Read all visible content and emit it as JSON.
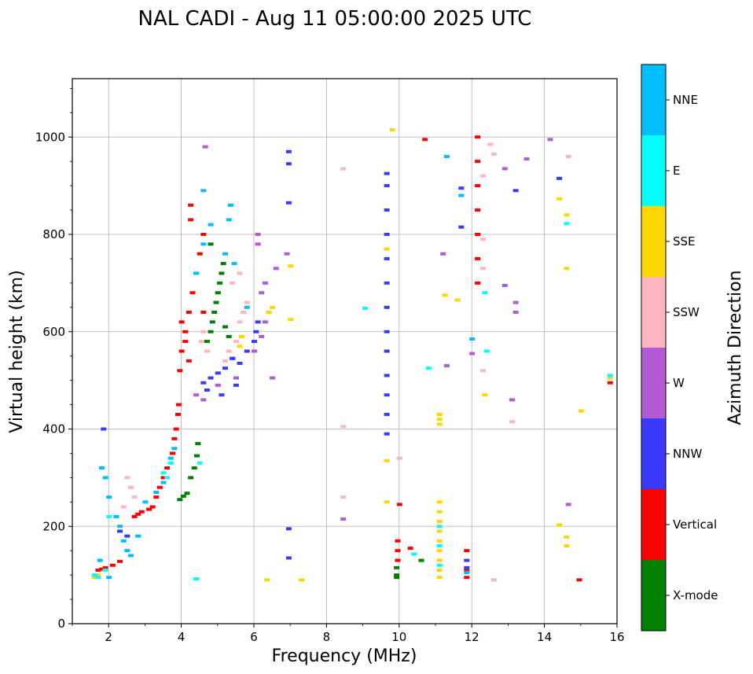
{
  "chart_data": {
    "type": "scatter",
    "title": "NAL CADI - Aug 11 05:00:00 2025 UTC",
    "xlabel": "Frequency (MHz)",
    "ylabel": "Virtual height (km)",
    "xlim": [
      1,
      16
    ],
    "ylim": [
      0,
      1120
    ],
    "xticks": [
      2,
      4,
      6,
      8,
      10,
      12,
      14,
      16
    ],
    "yticks": [
      0,
      200,
      400,
      600,
      800,
      1000
    ],
    "grid": true,
    "colorbar": {
      "label": "Azimuth Direction",
      "categories": [
        {
          "name": "X-mode",
          "color": "#008000"
        },
        {
          "name": "Vertical",
          "color": "#ff0000"
        },
        {
          "name": "NNW",
          "color": "#3a3aff"
        },
        {
          "name": "W",
          "color": "#b45ad7"
        },
        {
          "name": "SSW",
          "color": "#ffb6c1"
        },
        {
          "name": "SSE",
          "color": "#ffd700"
        },
        {
          "name": "E",
          "color": "#00ffff"
        },
        {
          "name": "NNE",
          "color": "#00bfff"
        }
      ]
    },
    "series": [
      {
        "name": "X-mode",
        "points": [
          [
            3.95,
            255
          ],
          [
            4.05,
            262
          ],
          [
            4.15,
            268
          ],
          [
            4.25,
            300
          ],
          [
            4.35,
            320
          ],
          [
            4.42,
            345
          ],
          [
            4.45,
            370
          ],
          [
            4.9,
            640
          ],
          [
            4.95,
            660
          ],
          [
            5.0,
            680
          ],
          [
            5.05,
            700
          ],
          [
            5.1,
            720
          ],
          [
            5.15,
            740
          ],
          [
            4.8,
            600
          ],
          [
            4.85,
            620
          ],
          [
            5.2,
            610
          ],
          [
            5.3,
            590
          ],
          [
            4.7,
            580
          ],
          [
            9.92,
            100
          ],
          [
            9.92,
            115
          ],
          [
            9.92,
            95
          ],
          [
            10.6,
            130
          ],
          [
            4.8,
            780
          ]
        ]
      },
      {
        "name": "Vertical",
        "points": [
          [
            1.7,
            110
          ],
          [
            1.8,
            112
          ],
          [
            1.9,
            115
          ],
          [
            2.1,
            120
          ],
          [
            2.3,
            128
          ],
          [
            2.7,
            220
          ],
          [
            2.8,
            225
          ],
          [
            2.9,
            230
          ],
          [
            3.1,
            235
          ],
          [
            3.2,
            240
          ],
          [
            3.3,
            260
          ],
          [
            3.4,
            280
          ],
          [
            3.5,
            300
          ],
          [
            3.6,
            320
          ],
          [
            3.75,
            350
          ],
          [
            3.8,
            380
          ],
          [
            3.85,
            400
          ],
          [
            3.9,
            430
          ],
          [
            3.92,
            450
          ],
          [
            3.95,
            520
          ],
          [
            4.0,
            560
          ],
          [
            4.1,
            600
          ],
          [
            4.2,
            640
          ],
          [
            4.3,
            680
          ],
          [
            4.4,
            720
          ],
          [
            4.5,
            760
          ],
          [
            4.6,
            800
          ],
          [
            4.25,
            830
          ],
          [
            4.25,
            860
          ],
          [
            4.6,
            640
          ],
          [
            4.0,
            620
          ],
          [
            4.1,
            580
          ],
          [
            4.2,
            540
          ],
          [
            12.15,
            700
          ],
          [
            12.15,
            750
          ],
          [
            12.15,
            800
          ],
          [
            12.15,
            850
          ],
          [
            12.15,
            900
          ],
          [
            12.15,
            950
          ],
          [
            12.15,
            1000
          ],
          [
            9.95,
            150
          ],
          [
            9.95,
            170
          ],
          [
            9.95,
            130
          ],
          [
            10.0,
            245
          ],
          [
            10.3,
            155
          ],
          [
            10.7,
            995
          ],
          [
            11.85,
            95
          ],
          [
            11.85,
            110
          ],
          [
            11.85,
            150
          ],
          [
            14.95,
            90
          ],
          [
            15.8,
            495
          ]
        ]
      },
      {
        "name": "NNW",
        "points": [
          [
            4.6,
            495
          ],
          [
            4.8,
            505
          ],
          [
            5.0,
            515
          ],
          [
            5.2,
            525
          ],
          [
            5.4,
            545
          ],
          [
            5.6,
            535
          ],
          [
            5.8,
            560
          ],
          [
            6.0,
            580
          ],
          [
            4.7,
            480
          ],
          [
            5.1,
            470
          ],
          [
            5.5,
            490
          ],
          [
            6.05,
            600
          ],
          [
            6.1,
            620
          ],
          [
            5.4,
            545
          ],
          [
            9.65,
            390
          ],
          [
            9.65,
            430
          ],
          [
            9.65,
            470
          ],
          [
            9.65,
            510
          ],
          [
            9.65,
            560
          ],
          [
            9.65,
            600
          ],
          [
            9.65,
            650
          ],
          [
            9.65,
            700
          ],
          [
            9.65,
            750
          ],
          [
            9.65,
            800
          ],
          [
            9.65,
            850
          ],
          [
            9.65,
            900
          ],
          [
            9.65,
            925
          ],
          [
            6.95,
            970
          ],
          [
            6.95,
            945
          ],
          [
            6.95,
            865
          ],
          [
            6.95,
            195
          ],
          [
            6.95,
            135
          ],
          [
            11.85,
            130
          ],
          [
            11.85,
            115
          ],
          [
            11.7,
            895
          ],
          [
            11.7,
            815
          ],
          [
            13.2,
            890
          ],
          [
            14.4,
            915
          ],
          [
            2.5,
            180
          ],
          [
            2.3,
            190
          ],
          [
            1.85,
            400
          ]
        ]
      },
      {
        "name": "W",
        "points": [
          [
            4.4,
            470
          ],
          [
            4.6,
            460
          ],
          [
            5.0,
            490
          ],
          [
            5.5,
            505
          ],
          [
            6.0,
            560
          ],
          [
            6.2,
            590
          ],
          [
            6.3,
            620
          ],
          [
            6.5,
            505
          ],
          [
            6.1,
            780
          ],
          [
            6.1,
            800
          ],
          [
            6.2,
            680
          ],
          [
            6.3,
            700
          ],
          [
            6.9,
            760
          ],
          [
            6.6,
            730
          ],
          [
            8.45,
            215
          ],
          [
            11.2,
            760
          ],
          [
            11.3,
            530
          ],
          [
            12.0,
            555
          ],
          [
            12.9,
            935
          ],
          [
            13.2,
            660
          ],
          [
            13.2,
            640
          ],
          [
            12.9,
            695
          ],
          [
            13.5,
            955
          ],
          [
            13.1,
            460
          ],
          [
            14.15,
            995
          ],
          [
            14.65,
            245
          ],
          [
            4.65,
            980
          ]
        ]
      },
      {
        "name": "SSW",
        "points": [
          [
            5.3,
            560
          ],
          [
            5.5,
            580
          ],
          [
            5.6,
            620
          ],
          [
            5.7,
            640
          ],
          [
            5.8,
            660
          ],
          [
            5.2,
            540
          ],
          [
            4.6,
            600
          ],
          [
            4.7,
            560
          ],
          [
            4.55,
            580
          ],
          [
            5.4,
            700
          ],
          [
            5.6,
            720
          ],
          [
            2.5,
            300
          ],
          [
            2.6,
            280
          ],
          [
            2.7,
            260
          ],
          [
            2.4,
            240
          ],
          [
            8.45,
            935
          ],
          [
            8.45,
            405
          ],
          [
            8.45,
            260
          ],
          [
            10.0,
            340
          ],
          [
            12.3,
            920
          ],
          [
            12.3,
            790
          ],
          [
            12.3,
            730
          ],
          [
            12.3,
            520
          ],
          [
            12.5,
            985
          ],
          [
            12.6,
            965
          ],
          [
            12.6,
            90
          ],
          [
            14.65,
            960
          ],
          [
            13.1,
            415
          ]
        ]
      },
      {
        "name": "SSE",
        "points": [
          [
            11.1,
            410
          ],
          [
            11.1,
            420
          ],
          [
            11.1,
            430
          ],
          [
            11.1,
            250
          ],
          [
            11.1,
            230
          ],
          [
            11.1,
            210
          ],
          [
            11.1,
            190
          ],
          [
            11.1,
            170
          ],
          [
            11.1,
            150
          ],
          [
            11.1,
            130
          ],
          [
            11.1,
            110
          ],
          [
            11.1,
            95
          ],
          [
            5.65,
            590
          ],
          [
            5.6,
            570
          ],
          [
            6.4,
            640
          ],
          [
            6.5,
            650
          ],
          [
            7.0,
            735
          ],
          [
            7.0,
            625
          ],
          [
            6.35,
            90
          ],
          [
            7.3,
            90
          ],
          [
            9.65,
            335
          ],
          [
            9.65,
            250
          ],
          [
            9.65,
            770
          ],
          [
            9.8,
            1015
          ],
          [
            11.25,
            675
          ],
          [
            11.6,
            665
          ],
          [
            12.35,
            470
          ],
          [
            14.4,
            873
          ],
          [
            14.6,
            840
          ],
          [
            14.6,
            730
          ],
          [
            14.6,
            178
          ],
          [
            14.6,
            160
          ],
          [
            14.4,
            203
          ],
          [
            15.0,
            437
          ],
          [
            15.8,
            505
          ],
          [
            1.7,
            100
          ],
          [
            1.6,
            95
          ]
        ]
      },
      {
        "name": "E",
        "points": [
          [
            2.0,
            220
          ],
          [
            1.9,
            110
          ],
          [
            1.6,
            100
          ],
          [
            1.7,
            95
          ],
          [
            3.6,
            300
          ],
          [
            3.7,
            330
          ],
          [
            3.5,
            310
          ],
          [
            9.05,
            648
          ],
          [
            10.8,
            525
          ],
          [
            10.4,
            143
          ],
          [
            11.1,
            200
          ],
          [
            11.1,
            160
          ],
          [
            11.1,
            120
          ],
          [
            12.35,
            680
          ],
          [
            12.4,
            560
          ],
          [
            14.6,
            822
          ],
          [
            15.8,
            510
          ],
          [
            4.4,
            92
          ],
          [
            4.5,
            330
          ]
        ]
      },
      {
        "name": "NNE",
        "points": [
          [
            1.8,
            320
          ],
          [
            1.9,
            300
          ],
          [
            2.0,
            260
          ],
          [
            2.2,
            220
          ],
          [
            2.3,
            200
          ],
          [
            2.4,
            170
          ],
          [
            2.5,
            150
          ],
          [
            2.6,
            140
          ],
          [
            2.8,
            180
          ],
          [
            3.0,
            250
          ],
          [
            3.3,
            270
          ],
          [
            3.5,
            290
          ],
          [
            3.7,
            340
          ],
          [
            3.8,
            360
          ],
          [
            4.4,
            720
          ],
          [
            4.6,
            780
          ],
          [
            4.6,
            890
          ],
          [
            5.3,
            830
          ],
          [
            5.2,
            760
          ],
          [
            5.35,
            860
          ],
          [
            5.45,
            740
          ],
          [
            5.8,
            650
          ],
          [
            4.8,
            820
          ],
          [
            11.3,
            960
          ],
          [
            11.7,
            880
          ],
          [
            12.0,
            585
          ],
          [
            11.85,
            105
          ],
          [
            2.0,
            95
          ],
          [
            1.75,
            130
          ]
        ]
      }
    ]
  }
}
